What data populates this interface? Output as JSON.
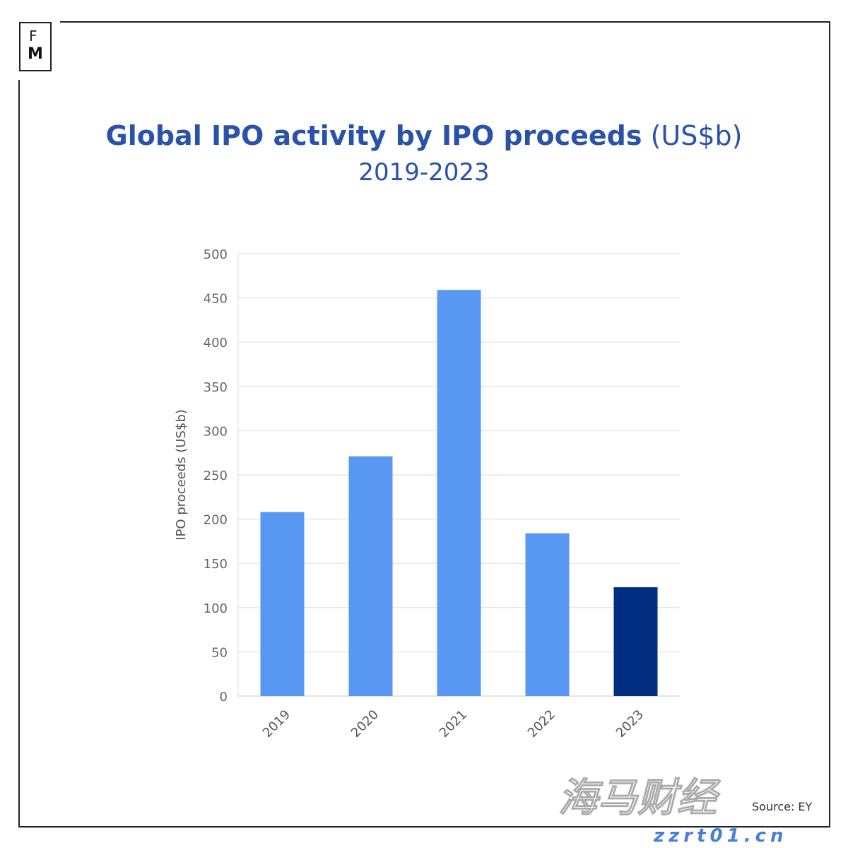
{
  "logo": {
    "line1": "F",
    "line2": "M"
  },
  "title_bold": "Global IPO activity by IPO proceeds",
  "title_unit": "(US$b)",
  "subtitle": "2019-2023",
  "source": "Source: EY",
  "watermark": {
    "text": "海马财经",
    "url": "zzrt01.cn"
  },
  "colors": {
    "bar": "#5898f2",
    "highlight": "#002d7f",
    "title": "#2a52a8"
  },
  "chart_data": {
    "type": "bar",
    "title": "Global IPO activity by IPO proceeds (US$b)",
    "subtitle": "2019-2023",
    "categories": [
      "2019",
      "2020",
      "2021",
      "2022",
      "2023"
    ],
    "values": [
      208,
      271,
      459,
      184,
      123
    ],
    "highlighted": [
      "2023"
    ],
    "xlabel": "",
    "ylabel": "IPO proceeds (US$b)",
    "ylim": [
      0,
      500
    ],
    "yticks": [
      0,
      50,
      100,
      150,
      200,
      250,
      300,
      350,
      400,
      450,
      500
    ],
    "grid": true,
    "legend": "none"
  }
}
